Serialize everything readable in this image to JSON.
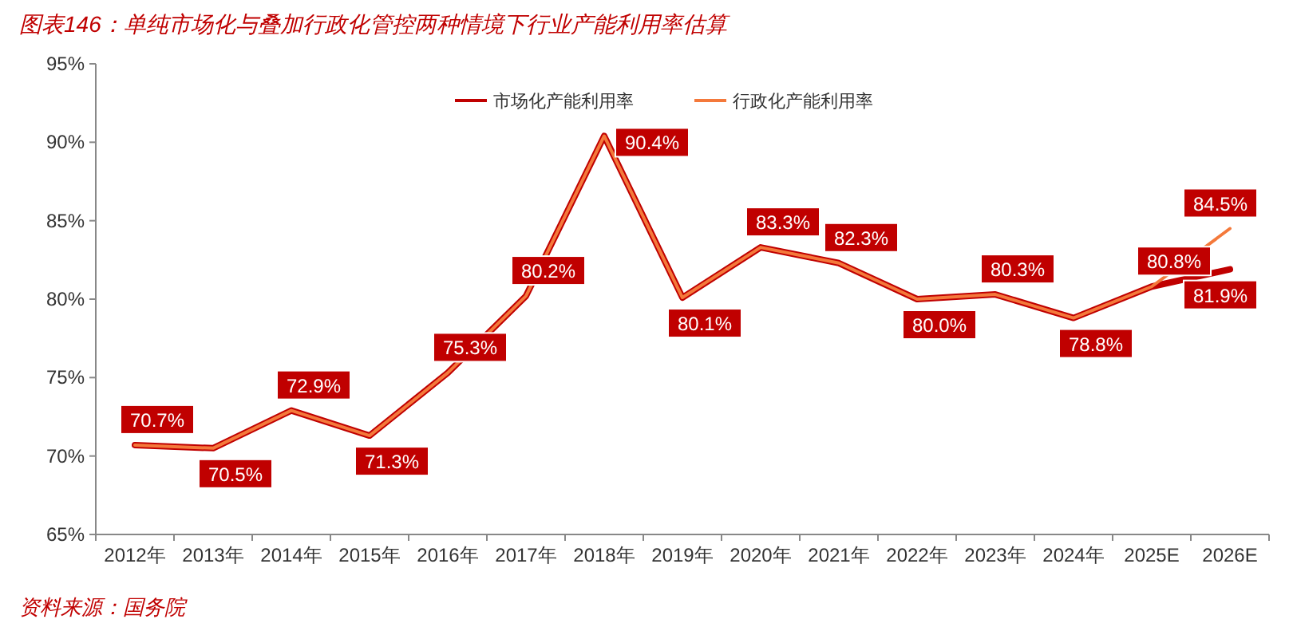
{
  "chart_data": {
    "type": "line",
    "title": "图表146：单纯市场化与叠加行政化管控两种情境下行业产能利用率估算",
    "categories": [
      "2012年",
      "2013年",
      "2014年",
      "2015年",
      "2016年",
      "2017年",
      "2018年",
      "2019年",
      "2020年",
      "2021年",
      "2022年",
      "2023年",
      "2024年",
      "2025E",
      "2026E"
    ],
    "series": [
      {
        "name": "市场化产能利用率",
        "color": "#c00000",
        "values": [
          70.7,
          70.5,
          72.9,
          71.3,
          75.3,
          80.2,
          90.4,
          80.1,
          83.3,
          82.3,
          80.0,
          80.3,
          78.8,
          80.8,
          81.9
        ],
        "value_labels": [
          null,
          null,
          null,
          null,
          null,
          null,
          null,
          null,
          null,
          null,
          null,
          null,
          null,
          null,
          "81.9%"
        ]
      },
      {
        "name": "行政化产能利用率",
        "color": "#f4793b",
        "values": [
          70.7,
          70.5,
          72.9,
          71.3,
          75.3,
          80.2,
          90.4,
          80.1,
          83.3,
          82.3,
          80.0,
          80.3,
          78.8,
          80.8,
          84.5
        ],
        "value_labels": [
          "70.7%",
          "70.5%",
          "72.9%",
          "71.3%",
          "75.3%",
          "80.2%",
          "90.4%",
          "80.1%",
          "83.3%",
          "82.3%",
          "80.0%",
          "80.3%",
          "78.8%",
          "80.8%",
          "84.5%"
        ]
      }
    ],
    "ylim": [
      65,
      95
    ],
    "yticks": [
      {
        "value": 65,
        "label": "65%"
      },
      {
        "value": 70,
        "label": "70%"
      },
      {
        "value": 75,
        "label": "75%"
      },
      {
        "value": 80,
        "label": "80%"
      },
      {
        "value": 85,
        "label": "85%"
      },
      {
        "value": 90,
        "label": "90%"
      },
      {
        "value": 95,
        "label": "95%"
      }
    ],
    "grid": false,
    "legend": "top",
    "marker": "none",
    "line_style": "solid",
    "annotations": [
      "资料来源：国务院"
    ]
  }
}
